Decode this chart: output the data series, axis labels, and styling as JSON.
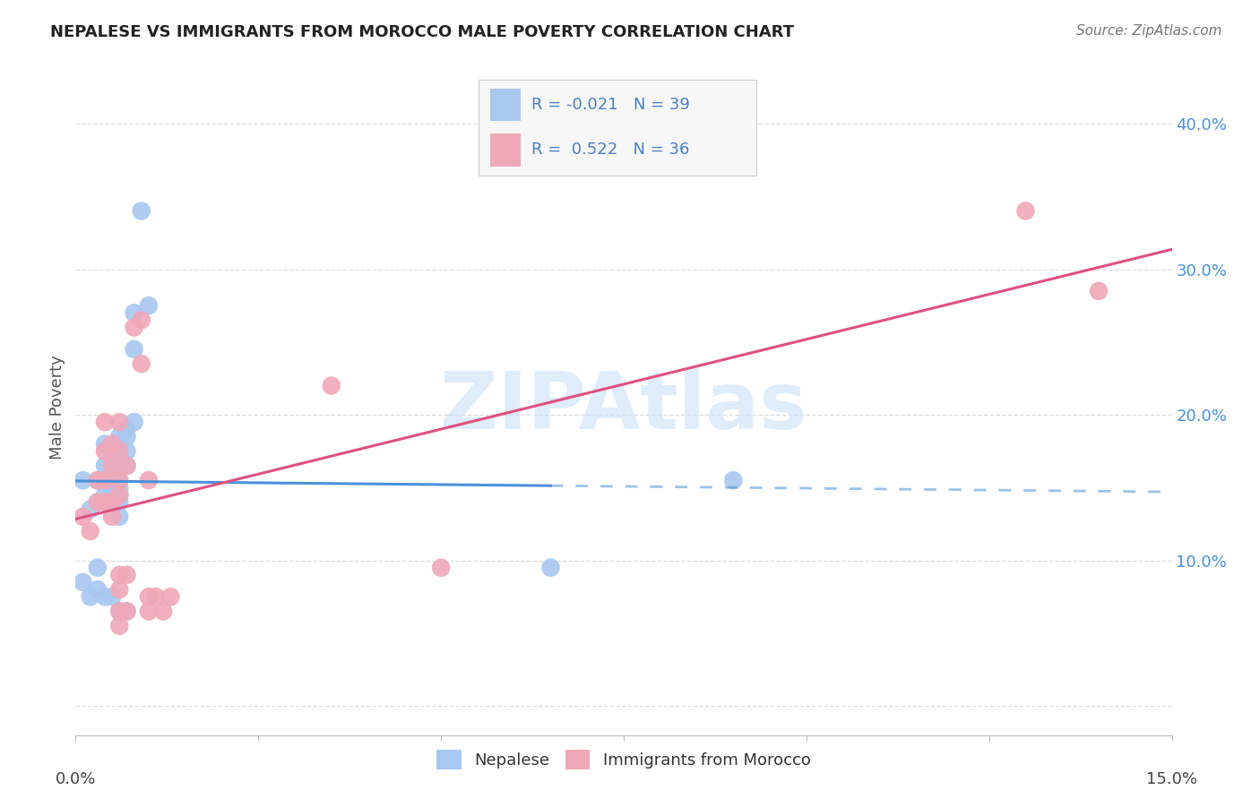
{
  "title": "NEPALESE VS IMMIGRANTS FROM MOROCCO MALE POVERTY CORRELATION CHART",
  "source": "Source: ZipAtlas.com",
  "ylabel": "Male Poverty",
  "xlim": [
    0.0,
    0.15
  ],
  "ylim": [
    -0.02,
    0.43
  ],
  "blue_R": -0.021,
  "blue_N": 39,
  "pink_R": 0.522,
  "pink_N": 36,
  "watermark": "ZIPAtlas",
  "blue_scatter": [
    [
      0.001,
      0.155
    ],
    [
      0.002,
      0.135
    ],
    [
      0.003,
      0.155
    ],
    [
      0.003,
      0.14
    ],
    [
      0.004,
      0.18
    ],
    [
      0.004,
      0.165
    ],
    [
      0.004,
      0.145
    ],
    [
      0.005,
      0.17
    ],
    [
      0.005,
      0.16
    ],
    [
      0.005,
      0.155
    ],
    [
      0.005,
      0.15
    ],
    [
      0.005,
      0.145
    ],
    [
      0.006,
      0.185
    ],
    [
      0.006,
      0.175
    ],
    [
      0.006,
      0.17
    ],
    [
      0.006,
      0.155
    ],
    [
      0.006,
      0.15
    ],
    [
      0.006,
      0.145
    ],
    [
      0.006,
      0.14
    ],
    [
      0.006,
      0.13
    ],
    [
      0.007,
      0.19
    ],
    [
      0.007,
      0.185
    ],
    [
      0.007,
      0.175
    ],
    [
      0.007,
      0.165
    ],
    [
      0.008,
      0.27
    ],
    [
      0.008,
      0.245
    ],
    [
      0.008,
      0.195
    ],
    [
      0.009,
      0.34
    ],
    [
      0.01,
      0.275
    ],
    [
      0.001,
      0.085
    ],
    [
      0.002,
      0.075
    ],
    [
      0.003,
      0.095
    ],
    [
      0.003,
      0.08
    ],
    [
      0.004,
      0.075
    ],
    [
      0.005,
      0.075
    ],
    [
      0.006,
      0.065
    ],
    [
      0.007,
      0.065
    ],
    [
      0.09,
      0.155
    ],
    [
      0.065,
      0.095
    ]
  ],
  "pink_scatter": [
    [
      0.001,
      0.13
    ],
    [
      0.002,
      0.12
    ],
    [
      0.003,
      0.155
    ],
    [
      0.003,
      0.14
    ],
    [
      0.004,
      0.195
    ],
    [
      0.004,
      0.175
    ],
    [
      0.004,
      0.155
    ],
    [
      0.004,
      0.14
    ],
    [
      0.005,
      0.18
    ],
    [
      0.005,
      0.165
    ],
    [
      0.005,
      0.14
    ],
    [
      0.005,
      0.13
    ],
    [
      0.006,
      0.195
    ],
    [
      0.006,
      0.175
    ],
    [
      0.006,
      0.155
    ],
    [
      0.006,
      0.145
    ],
    [
      0.006,
      0.09
    ],
    [
      0.006,
      0.08
    ],
    [
      0.006,
      0.065
    ],
    [
      0.006,
      0.055
    ],
    [
      0.007,
      0.165
    ],
    [
      0.007,
      0.09
    ],
    [
      0.007,
      0.065
    ],
    [
      0.008,
      0.26
    ],
    [
      0.009,
      0.265
    ],
    [
      0.009,
      0.235
    ],
    [
      0.01,
      0.155
    ],
    [
      0.01,
      0.075
    ],
    [
      0.01,
      0.065
    ],
    [
      0.011,
      0.075
    ],
    [
      0.012,
      0.065
    ],
    [
      0.013,
      0.075
    ],
    [
      0.035,
      0.22
    ],
    [
      0.05,
      0.095
    ],
    [
      0.13,
      0.34
    ],
    [
      0.14,
      0.285
    ]
  ],
  "blue_color": "#a8c8f0",
  "pink_color": "#f0a8b8",
  "blue_line_color": "#4a90d9",
  "pink_line_color": "#e05080",
  "legend_text_color": "#4a7fc4",
  "background_color": "#ffffff",
  "grid_color": "#dddddd",
  "ytick_positions": [
    0.0,
    0.1,
    0.2,
    0.3,
    0.4
  ],
  "ytick_labels": [
    "",
    "10.0%",
    "20.0%",
    "30.0%",
    "40.0%"
  ]
}
